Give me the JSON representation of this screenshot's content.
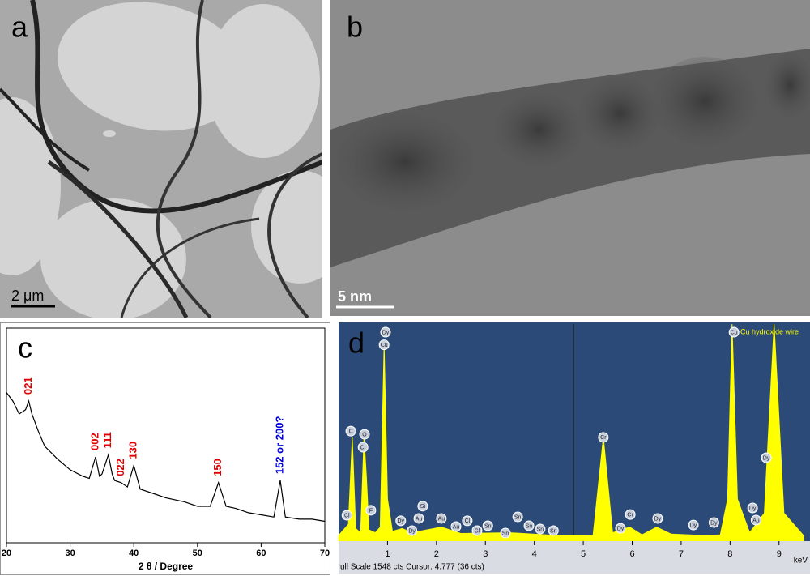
{
  "panels": {
    "a": {
      "label": "a",
      "scale_bar": "2 μm"
    },
    "b": {
      "label": "b",
      "scale_bar": "5 nm"
    }
  },
  "chart_data": [
    {
      "type": "line",
      "label": "c",
      "xlabel": "2 θ / Degree",
      "color": "#000000",
      "x": [
        20,
        21,
        22,
        23,
        23.5,
        24,
        25,
        26,
        28,
        30,
        32,
        33,
        34,
        34.6,
        35,
        36,
        36.6,
        37,
        38,
        39,
        40,
        41,
        43,
        45,
        48,
        50,
        52,
        53.3,
        54.5,
        56,
        58,
        60,
        62,
        63,
        63.8,
        66,
        68,
        70
      ],
      "values": [
        70,
        66,
        60,
        62,
        66,
        60,
        52,
        45,
        39,
        34,
        31,
        30,
        40,
        31,
        32,
        41,
        32,
        29,
        28,
        26,
        36,
        25,
        23,
        21,
        19,
        17,
        17,
        28,
        17,
        16,
        14,
        13,
        12,
        29,
        12,
        11,
        11,
        10
      ],
      "xlim": [
        20,
        70
      ],
      "xticks": [
        20,
        30,
        40,
        50,
        60,
        70
      ],
      "ylim": [
        0,
        100
      ],
      "annotations": [
        {
          "text": "021",
          "x": 23.5,
          "color": "#e00000"
        },
        {
          "text": "002",
          "x": 34,
          "color": "#e00000"
        },
        {
          "text": "111",
          "x": 36,
          "color": "#e00000"
        },
        {
          "text": "022",
          "x": 38,
          "color": "#e00000"
        },
        {
          "text": "130",
          "x": 40,
          "color": "#e00000"
        },
        {
          "text": "150",
          "x": 53.3,
          "color": "#e00000"
        },
        {
          "text": "152 or 200?",
          "x": 63,
          "color": "#0000e0"
        }
      ]
    },
    {
      "type": "area",
      "label": "d",
      "title": "Cu hydroxide wire",
      "xlabel": "keV",
      "status": "ull Scale 1548 cts Cursor: 4.777  (36 cts)",
      "color": "#ffff00",
      "x": [
        0,
        0.2,
        0.28,
        0.35,
        0.45,
        0.52,
        0.57,
        0.62,
        0.75,
        0.85,
        0.93,
        1.0,
        1.1,
        1.3,
        1.5,
        2.1,
        2.5,
        3.5,
        4.5,
        5.2,
        5.41,
        5.6,
        5.95,
        6.2,
        6.5,
        6.8,
        7.5,
        7.8,
        7.95,
        8.04,
        8.15,
        8.4,
        8.7,
        8.9,
        9.1,
        9.5
      ],
      "values": [
        40,
        120,
        740,
        90,
        60,
        740,
        450,
        80,
        60,
        100,
        1400,
        300,
        70,
        90,
        60,
        100,
        55,
        60,
        40,
        40,
        740,
        60,
        100,
        45,
        100,
        50,
        40,
        45,
        300,
        1548,
        300,
        60,
        200,
        1548,
        200,
        40
      ],
      "xlim": [
        0,
        9.55
      ],
      "xticks": [
        1,
        2,
        3,
        4,
        5,
        6,
        7,
        8,
        9
      ],
      "ylim": [
        0,
        1548
      ],
      "annotations": [
        {
          "text": "Dy",
          "x": 0.96,
          "y": 1490
        },
        {
          "text": "Cu",
          "x": 0.93,
          "y": 1400
        },
        {
          "text": "C",
          "x": 0.25,
          "y": 785
        },
        {
          "text": "O",
          "x": 0.53,
          "y": 762
        },
        {
          "text": "Cr",
          "x": 0.5,
          "y": 670
        },
        {
          "text": "Cl",
          "x": 0.17,
          "y": 185
        },
        {
          "text": "F",
          "x": 0.66,
          "y": 220
        },
        {
          "text": "Dy",
          "x": 1.27,
          "y": 145
        },
        {
          "text": "Dy",
          "x": 1.5,
          "y": 75
        },
        {
          "text": "Au",
          "x": 1.64,
          "y": 162
        },
        {
          "text": "Si",
          "x": 1.72,
          "y": 250
        },
        {
          "text": "Au",
          "x": 2.1,
          "y": 162
        },
        {
          "text": "Au",
          "x": 2.4,
          "y": 104
        },
        {
          "text": "Cl",
          "x": 2.63,
          "y": 145
        },
        {
          "text": "Cl",
          "x": 2.83,
          "y": 75
        },
        {
          "text": "Sn",
          "x": 3.05,
          "y": 110
        },
        {
          "text": "Sn",
          "x": 3.41,
          "y": 58
        },
        {
          "text": "Sn",
          "x": 3.66,
          "y": 173
        },
        {
          "text": "Sn",
          "x": 3.89,
          "y": 110
        },
        {
          "text": "Sn",
          "x": 4.12,
          "y": 87
        },
        {
          "text": "Sn",
          "x": 4.39,
          "y": 75
        },
        {
          "text": "Cr",
          "x": 5.41,
          "y": 740
        },
        {
          "text": "Dy",
          "x": 5.76,
          "y": 92
        },
        {
          "text": "Cr",
          "x": 5.96,
          "y": 190
        },
        {
          "text": "Dy",
          "x": 6.52,
          "y": 162
        },
        {
          "text": "Dy",
          "x": 7.25,
          "y": 115
        },
        {
          "text": "Dy",
          "x": 7.67,
          "y": 133
        },
        {
          "text": "Cu",
          "x": 8.08,
          "y": 1490
        },
        {
          "text": "Dy",
          "x": 8.74,
          "y": 595
        },
        {
          "text": "Dy",
          "x": 8.46,
          "y": 237
        },
        {
          "text": "Au",
          "x": 8.53,
          "y": 150
        }
      ]
    }
  ]
}
